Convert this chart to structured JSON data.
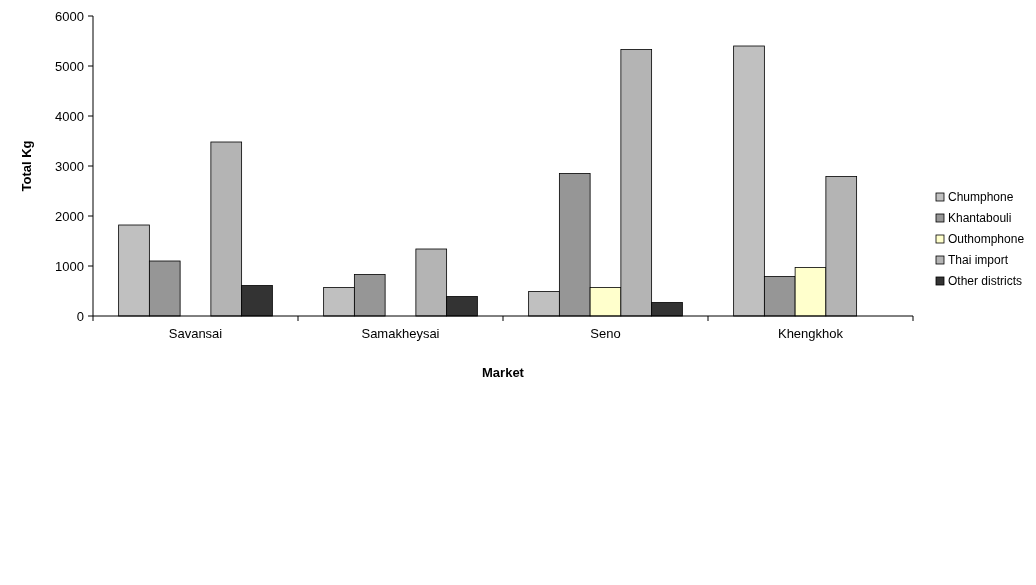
{
  "chart_data": {
    "type": "bar",
    "xlabel": "Market",
    "ylabel": "Total Kg",
    "categories": [
      "Savansai",
      "Samakheysai",
      "Seno",
      "Khengkhok"
    ],
    "series": [
      {
        "name": "Chumphone",
        "color": "#c0c0c0",
        "values": [
          1820,
          570,
          490,
          5400
        ]
      },
      {
        "name": "Khantabouli",
        "color": "#969696",
        "values": [
          1100,
          830,
          2850,
          790
        ]
      },
      {
        "name": "Outhomphone",
        "color": "#ffffcc",
        "values": [
          null,
          null,
          570,
          970
        ]
      },
      {
        "name": "Thai import",
        "color": "#b4b4b4",
        "values": [
          3480,
          1340,
          5330,
          2790
        ]
      },
      {
        "name": "Other districts",
        "color": "#333333",
        "values": [
          610,
          390,
          270,
          null
        ]
      }
    ],
    "ylim": [
      0,
      6000
    ],
    "yticks": [
      0,
      1000,
      2000,
      3000,
      4000,
      5000,
      6000
    ],
    "grid": false,
    "legend": "right"
  }
}
